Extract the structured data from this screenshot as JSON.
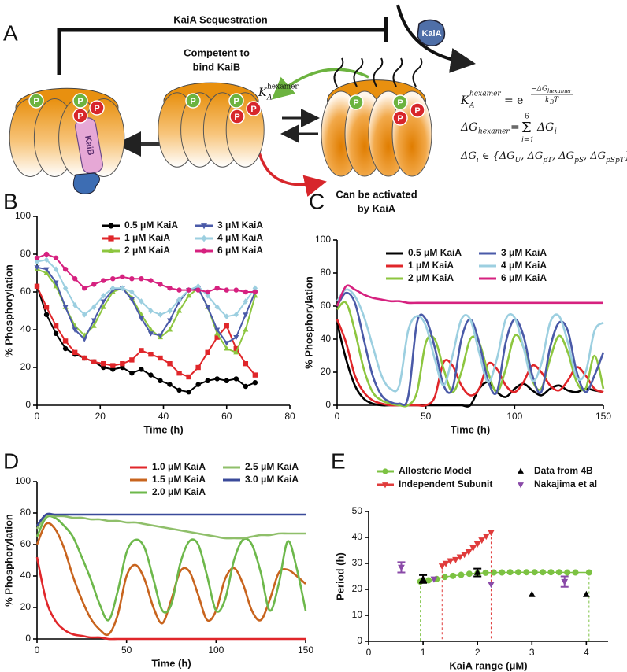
{
  "diagram": {
    "panel": "A",
    "sequestration": "KaiA Sequestration",
    "competent": [
      "Competent to",
      "bind KaiB"
    ],
    "activated": [
      "Can be activated",
      "by KaiA"
    ],
    "kaib": "KaiB",
    "kaia": "KaiA",
    "phospho": "P",
    "k_label": {
      "k": "K",
      "sub": "A",
      "sup": "hexamer"
    },
    "eq1": {
      "k": "K",
      "k_sub": "A",
      "k_sup": "hexamer",
      "eq": "= e",
      "num": "−ΔG",
      "num_sub": "hexamer",
      "den": "k",
      "den_sub": "B",
      "den_t": "T"
    },
    "eq2": {
      "lhs": "ΔG",
      "lhs_sub": "hexamer",
      "eq": "=",
      "sum": "Σ",
      "upper": "6",
      "lower": "i=1",
      "term": "ΔG",
      "term_sub": "i"
    },
    "eq3": [
      "ΔG",
      "i",
      " ∈ {ΔG",
      "U",
      ", ΔG",
      "pT",
      ", ΔG",
      "pS",
      ", ΔG",
      "pSpT",
      "}"
    ]
  },
  "chart_data": [
    {
      "type": "line",
      "panel": "B",
      "x_label": "Time (h)",
      "y_label": "% Phosphorylation",
      "xlim": [
        0,
        80
      ],
      "xticks": [
        0,
        20,
        40,
        60,
        80
      ],
      "ylim": [
        0,
        100
      ],
      "yticks": [
        0,
        20,
        40,
        60,
        80,
        100
      ],
      "x": [
        0,
        3,
        6,
        9,
        12,
        15,
        18,
        21,
        24,
        27,
        30,
        33,
        36,
        39,
        42,
        45,
        48,
        51,
        54,
        57,
        60,
        63,
        66,
        69
      ],
      "series": [
        {
          "name": "0.5 μM KaiA",
          "color": "#000000",
          "marker": "circle",
          "values": [
            63,
            48,
            38,
            30,
            27,
            25,
            23,
            20,
            19,
            20,
            17,
            19,
            16,
            13,
            11,
            8,
            7,
            11,
            13,
            14,
            13,
            14,
            10,
            12
          ]
        },
        {
          "name": "1 μM KaiA",
          "color": "#e0262a",
          "marker": "square",
          "values": [
            63,
            52,
            42,
            34,
            28,
            25,
            23,
            22,
            21,
            22,
            24,
            29,
            27,
            25,
            22,
            17,
            15,
            20,
            28,
            36,
            42,
            30,
            22,
            16
          ]
        },
        {
          "name": "2 μM KaiA",
          "color": "#8dc63f",
          "marker": "triangle",
          "values": [
            72,
            70,
            63,
            52,
            42,
            37,
            42,
            52,
            60,
            62,
            57,
            48,
            40,
            36,
            40,
            50,
            58,
            62,
            52,
            38,
            30,
            28,
            40,
            58
          ]
        },
        {
          "name": "3 μM KaiA",
          "color": "#4a5aa8",
          "marker": "triangle-down",
          "values": [
            73,
            72,
            65,
            52,
            40,
            35,
            45,
            55,
            61,
            62,
            56,
            46,
            38,
            37,
            45,
            55,
            61,
            62,
            52,
            40,
            33,
            36,
            48,
            60
          ]
        },
        {
          "name": "4 μM KaiA",
          "color": "#9ccfe0",
          "marker": "diamond",
          "values": [
            76,
            77,
            72,
            62,
            53,
            48,
            52,
            58,
            62,
            62,
            60,
            55,
            50,
            48,
            50,
            56,
            61,
            63,
            58,
            52,
            47,
            48,
            55,
            62
          ]
        },
        {
          "name": "6 μM KaiA",
          "color": "#d6217f",
          "marker": "circle",
          "values": [
            78,
            80,
            78,
            72,
            67,
            62,
            64,
            66,
            67,
            68,
            67,
            67,
            66,
            64,
            62,
            61,
            61,
            61,
            60,
            62,
            61,
            61,
            60,
            60
          ]
        }
      ]
    },
    {
      "type": "line",
      "panel": "C",
      "x_label": "Time (h)",
      "y_label": "% Phosphorylation",
      "smooth": true,
      "xlim": [
        0,
        150
      ],
      "xticks": [
        0,
        50,
        100,
        150
      ],
      "ylim": [
        0,
        100
      ],
      "yticks": [
        0,
        20,
        40,
        60,
        80,
        100
      ],
      "x": [
        0,
        5,
        10,
        15,
        20,
        25,
        30,
        35,
        40,
        45,
        50,
        55,
        60,
        65,
        70,
        75,
        80,
        85,
        90,
        95,
        100,
        105,
        110,
        115,
        120,
        125,
        130,
        135,
        140,
        145,
        150
      ],
      "series": [
        {
          "name": "0.5 μM KaiA",
          "color": "#000000",
          "values": [
            50,
            28,
            12,
            4,
            1,
            0,
            0,
            0,
            0,
            0,
            0,
            0,
            0,
            0,
            0,
            0,
            10,
            14,
            8,
            5,
            10,
            13,
            9,
            6,
            10,
            12,
            9,
            8,
            10,
            9,
            8
          ]
        },
        {
          "name": "1 μM KaiA",
          "color": "#e0262a",
          "values": [
            52,
            38,
            18,
            8,
            3,
            1,
            0,
            0,
            0,
            0,
            0,
            5,
            26,
            24,
            12,
            6,
            10,
            25,
            22,
            12,
            8,
            14,
            24,
            20,
            12,
            9,
            15,
            23,
            18,
            10,
            8
          ]
        },
        {
          "name": "2 μM KaiA",
          "color": "#8dc63f",
          "values": [
            58,
            62,
            45,
            22,
            8,
            3,
            1,
            0,
            0,
            8,
            38,
            40,
            22,
            8,
            20,
            40,
            38,
            20,
            8,
            22,
            42,
            35,
            15,
            10,
            28,
            42,
            32,
            14,
            10,
            30,
            10
          ]
        },
        {
          "name": "3 μM KaiA",
          "color": "#4a5aa8",
          "values": [
            60,
            68,
            62,
            40,
            18,
            6,
            2,
            1,
            5,
            50,
            52,
            35,
            12,
            10,
            40,
            52,
            38,
            15,
            8,
            38,
            52,
            42,
            18,
            8,
            35,
            50,
            45,
            20,
            8,
            18,
            32
          ]
        },
        {
          "name": "4 μM KaiA",
          "color": "#9ccfe0",
          "values": [
            63,
            70,
            66,
            54,
            36,
            18,
            10,
            12,
            45,
            54,
            48,
            28,
            12,
            30,
            52,
            52,
            32,
            14,
            28,
            52,
            53,
            35,
            15,
            25,
            50,
            54,
            38,
            17,
            20,
            45,
            50
          ]
        },
        {
          "name": "6 μM KaiA",
          "color": "#d6217f",
          "values": [
            60,
            72,
            70,
            67,
            65,
            64,
            63,
            63,
            62,
            62,
            62,
            62,
            62,
            62,
            62,
            62,
            62,
            62,
            62,
            62,
            62,
            62,
            62,
            62,
            62,
            62,
            62,
            62,
            62,
            62,
            62
          ]
        }
      ]
    },
    {
      "type": "line",
      "panel": "D",
      "x_label": "Time (h)",
      "y_label": "% Phosphorylation",
      "smooth": true,
      "xlim": [
        0,
        150
      ],
      "xticks": [
        0,
        50,
        100,
        150
      ],
      "ylim": [
        0,
        100
      ],
      "yticks": [
        0,
        20,
        40,
        60,
        80,
        100
      ],
      "x": [
        0,
        5,
        10,
        15,
        20,
        25,
        30,
        35,
        40,
        45,
        50,
        55,
        60,
        65,
        70,
        75,
        80,
        85,
        90,
        95,
        100,
        105,
        110,
        115,
        120,
        125,
        130,
        135,
        140,
        145,
        150
      ],
      "series": [
        {
          "name": "1.0 μM KaiA",
          "color": "#e0262a",
          "values": [
            52,
            25,
            12,
            6,
            3,
            2,
            1,
            1,
            0,
            0,
            0,
            0,
            0,
            0,
            0,
            0,
            0,
            0,
            0,
            0,
            0,
            0,
            0,
            0,
            0,
            0,
            0,
            0,
            0,
            0,
            0
          ]
        },
        {
          "name": "1.5 μM KaiA",
          "color": "#c8641e",
          "values": [
            60,
            73,
            70,
            58,
            40,
            25,
            13,
            6,
            3,
            15,
            40,
            47,
            38,
            20,
            10,
            25,
            43,
            43,
            28,
            12,
            18,
            38,
            45,
            35,
            18,
            12,
            25,
            42,
            44,
            40,
            35
          ]
        },
        {
          "name": "2.0 μM KaiA",
          "color": "#6db84b",
          "values": [
            65,
            77,
            77,
            72,
            65,
            52,
            38,
            22,
            12,
            30,
            55,
            63,
            58,
            38,
            18,
            22,
            48,
            62,
            60,
            40,
            18,
            25,
            50,
            63,
            60,
            42,
            18,
            35,
            62,
            45,
            18
          ]
        },
        {
          "name": "2.5 μM KaiA",
          "color": "#8fbf6a",
          "values": [
            70,
            78,
            78,
            78,
            77,
            77,
            76,
            76,
            75,
            75,
            74,
            74,
            73,
            72,
            71,
            70,
            69,
            68,
            67,
            66,
            65,
            64,
            64,
            64,
            65,
            66,
            66,
            67,
            67,
            67,
            67
          ]
        },
        {
          "name": "3.0 μM KaiA",
          "color": "#3a4a9a",
          "values": [
            72,
            79,
            79,
            79,
            79,
            79,
            79,
            79,
            79,
            79,
            79,
            79,
            79,
            79,
            79,
            79,
            79,
            79,
            79,
            79,
            79,
            79,
            79,
            79,
            79,
            79,
            79,
            79,
            79,
            79,
            79
          ]
        }
      ]
    },
    {
      "type": "scatter",
      "panel": "E",
      "x_label": "KaiA range (μM)",
      "y_label": "Period (h)",
      "xlim": [
        0,
        4.4
      ],
      "xticks": [
        0,
        1,
        2,
        3,
        4
      ],
      "ylim": [
        0,
        50
      ],
      "yticks": [
        0,
        10,
        20,
        30,
        40,
        50
      ],
      "series": [
        {
          "name": "Allosteric Model",
          "color": "#7cc242",
          "marker": "circle",
          "line": true,
          "x": [
            0.95,
            1.1,
            1.25,
            1.4,
            1.55,
            1.7,
            1.85,
            2.0,
            2.15,
            2.3,
            2.45,
            2.6,
            2.75,
            2.9,
            3.05,
            3.2,
            3.35,
            3.5,
            3.65,
            3.8,
            4.05
          ],
          "values": [
            23,
            23.5,
            24,
            24.8,
            25.2,
            25.6,
            26,
            26.2,
            26.4,
            26.5,
            26.5,
            26.6,
            26.6,
            26.6,
            26.6,
            26.6,
            26.6,
            26.6,
            26.5,
            26.5,
            26.5
          ]
        },
        {
          "name": "Independent Subunit",
          "color": "#e03c3c",
          "marker": "triangle-down",
          "line": true,
          "x": [
            1.35,
            1.42,
            1.5,
            1.6,
            1.68,
            1.76,
            1.84,
            1.92,
            2.0,
            2.08,
            2.16,
            2.25
          ],
          "values": [
            29,
            30,
            31,
            31.5,
            32.5,
            33.5,
            34.5,
            36,
            37.5,
            39,
            40.5,
            42
          ]
        },
        {
          "name": "Data from 4B",
          "color": "#000000",
          "marker": "triangle",
          "x": [
            1,
            2,
            3,
            4
          ],
          "values": [
            24,
            26.5,
            18,
            18
          ],
          "errors": [
            1.5,
            1.5,
            null,
            null
          ]
        },
        {
          "name": "Nakajima et al",
          "color": "#8a4aa8",
          "marker": "triangle-down",
          "x": [
            0.6,
            1.2,
            2.25,
            3.6
          ],
          "values": [
            28.5,
            24,
            22,
            23
          ],
          "errors": [
            2,
            null,
            null,
            2
          ]
        }
      ]
    }
  ]
}
